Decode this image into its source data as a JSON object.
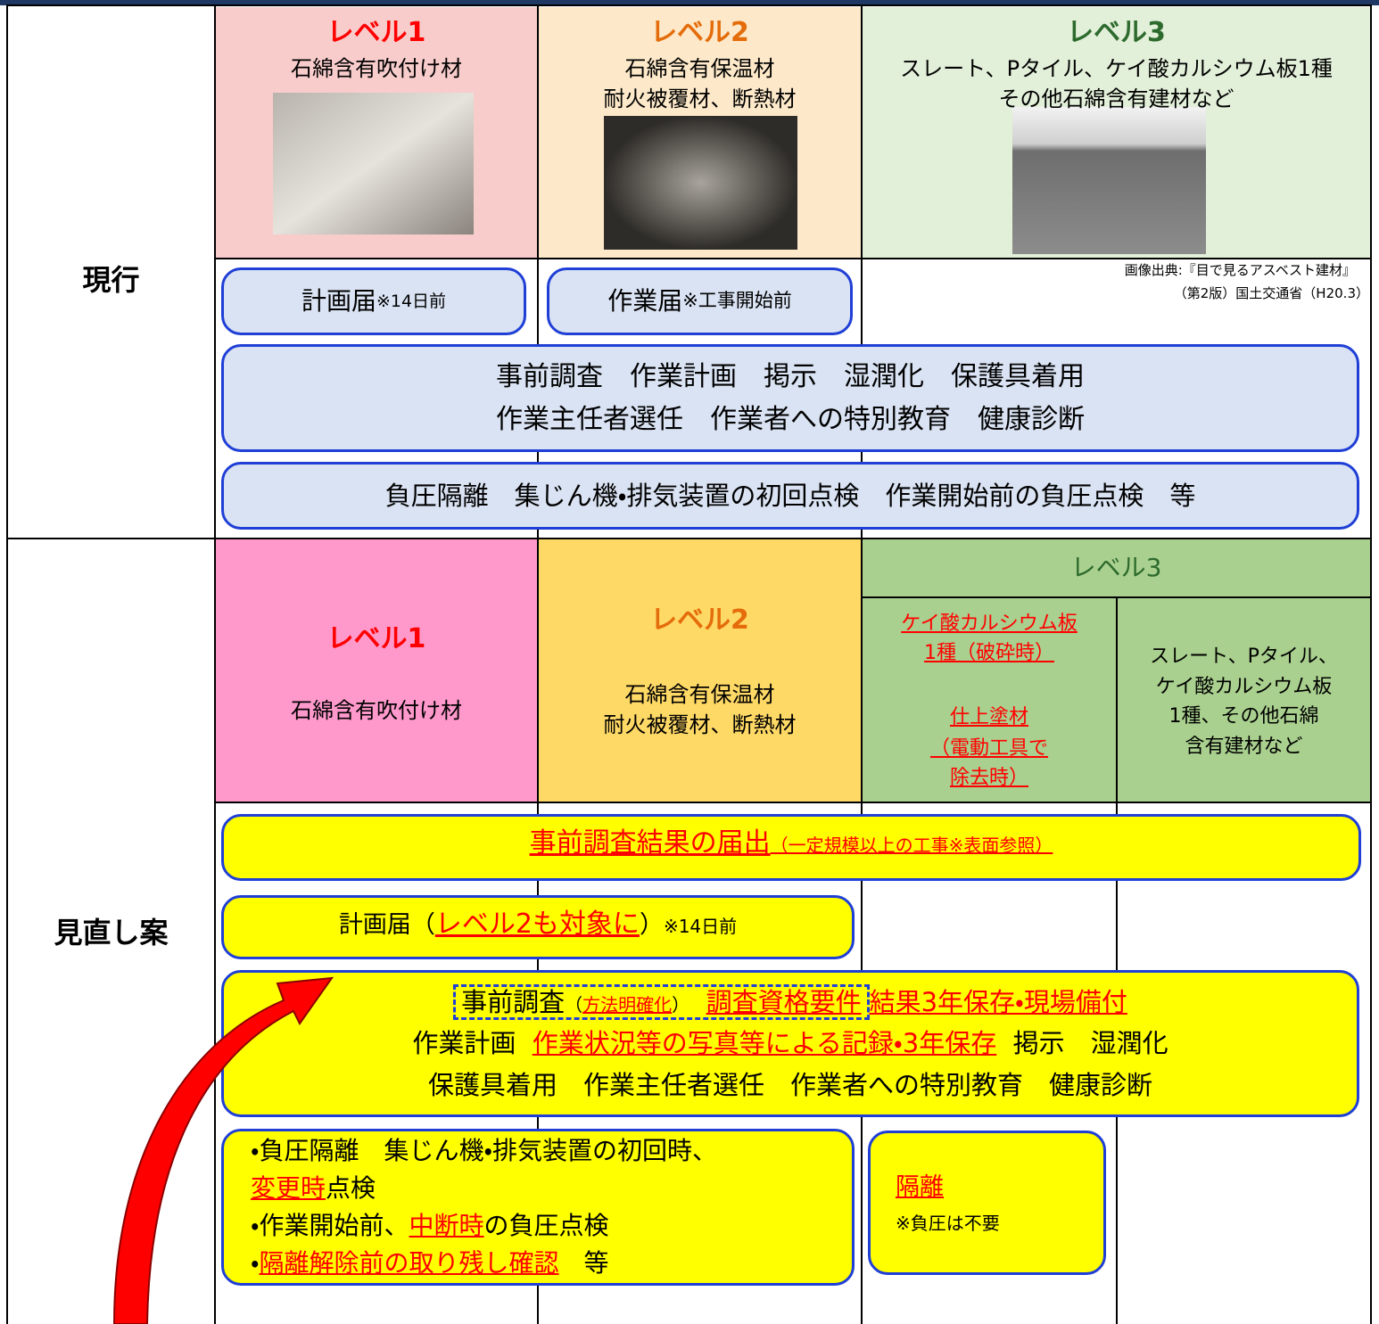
{
  "current": {
    "label": "現行",
    "levels": [
      {
        "title": "レベル1",
        "lines": [
          "石綿含有吹付け材"
        ]
      },
      {
        "title": "レベル2",
        "lines": [
          "石綿含有保温材",
          "耐火被覆材、断熱材"
        ]
      },
      {
        "title": "レベル3",
        "lines": [
          "スレート、Pタイル、ケイ酸カルシウム板1種",
          "その他石綿含有建材など"
        ]
      }
    ],
    "image_credit": [
      "画像出典:『目で見るアスベスト建材』",
      "（第2版）国土交通省（H20.3）"
    ],
    "plan_notice": [
      "計画届",
      "※14日前"
    ],
    "work_notice": [
      "作業届",
      "※工事開始前"
    ],
    "measures": [
      "事前調査　作業計画　掲示　湿潤化　保護具着用",
      "作業主任者選任　作業者への特別教育　健康診断"
    ],
    "isolation": "負圧隔離　集じん機・排気装置の初回点検　作業開始前の負圧点検　等"
  },
  "proposal": {
    "label": "見直し案",
    "level1": {
      "title": "レベル1",
      "lines": [
        "石綿含有吹付け材"
      ]
    },
    "level2": {
      "title": "レベル2",
      "lines": [
        "石綿含有保温材",
        "耐火被覆材、断熱材"
      ]
    },
    "level3": {
      "title": "レベル3",
      "a": [
        "ケイ酸カルシウム板",
        "1種（破砕時）",
        "仕上塗材",
        "（電動工具で",
        "除去時）"
      ],
      "b": [
        "スレート、Pタイル、",
        "ケイ酸カルシウム板",
        "1種、その他石綿",
        "含有建材など"
      ]
    },
    "survey_report": [
      "事前調査結果の届出",
      "（一定規模以上の工事※表面参照）"
    ],
    "plan_notice": [
      "計画届（",
      "レベル2も対象に",
      "）",
      "※14日前"
    ],
    "measures": {
      "line1": [
        "事前調査",
        "（",
        "方法明確化",
        "）",
        "調査資格要件",
        "結果3年保存・現場備付"
      ],
      "line2": [
        "作業計画",
        "作業状況等の写真等による記録・3年保存",
        "掲示　湿潤化"
      ],
      "line3": "保護具着用　作業主任者選任　作業者への特別教育　健康診断"
    },
    "isolation": [
      [
        "・負圧隔離　集じん機・排気装置の初回時、"
      ],
      [
        "変更時",
        "点検"
      ],
      [
        "・作業開始前、",
        "中断時",
        "の負圧点検"
      ],
      [
        "・",
        "隔離解除前の取り残し確認",
        "　等"
      ]
    ],
    "isolation_level3": [
      "隔離",
      "※負圧は不要"
    ]
  }
}
